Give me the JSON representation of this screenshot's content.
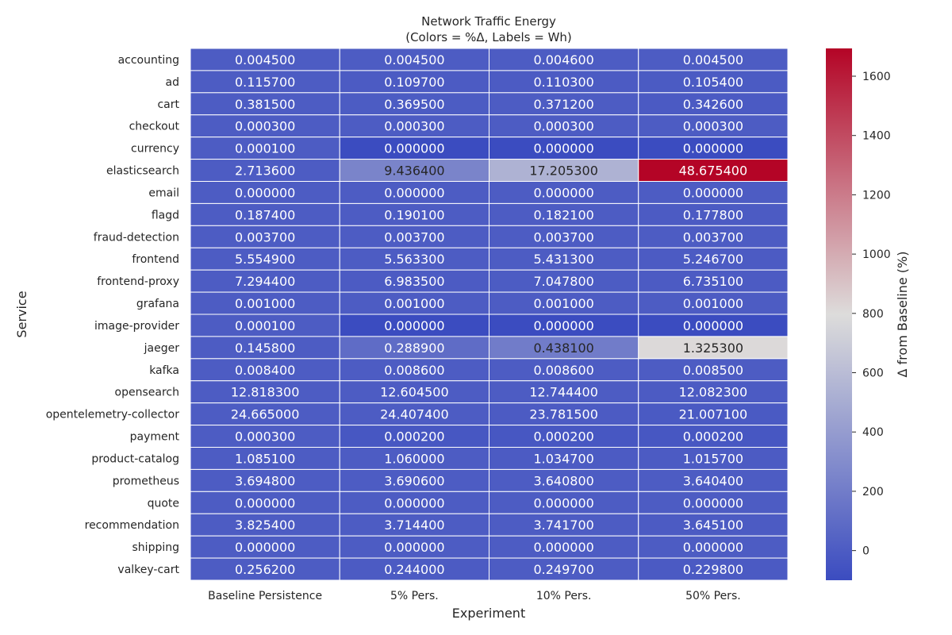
{
  "chart_data": {
    "type": "heatmap",
    "title_lines": [
      "Network Traffic Energy",
      "(Colors = %Δ, Labels = Wh)"
    ],
    "xlabel": "Experiment",
    "ylabel": "Service",
    "colorbar_label": "Δ from Baseline (%)",
    "colorbar_range": [
      -100,
      1693.7
    ],
    "colorbar_ticks": [
      0,
      200,
      400,
      600,
      800,
      1000,
      1200,
      1400,
      1600
    ],
    "colormap": [
      "#3b4cc0",
      "#dddcdb",
      "#b40426"
    ],
    "columns": [
      "Baseline Persistence",
      "5% Pers.",
      "10% Pers.",
      "50% Pers."
    ],
    "rows": [
      "accounting",
      "ad",
      "cart",
      "checkout",
      "currency",
      "elasticsearch",
      "email",
      "flagd",
      "fraud-detection",
      "frontend",
      "frontend-proxy",
      "grafana",
      "image-provider",
      "jaeger",
      "kafka",
      "opensearch",
      "opentelemetry-collector",
      "payment",
      "product-catalog",
      "prometheus",
      "quote",
      "recommendation",
      "shipping",
      "valkey-cart"
    ],
    "labels": [
      [
        "0.004500",
        "0.004500",
        "0.004600",
        "0.004500"
      ],
      [
        "0.115700",
        "0.109700",
        "0.110300",
        "0.105400"
      ],
      [
        "0.381500",
        "0.369500",
        "0.371200",
        "0.342600"
      ],
      [
        "0.000300",
        "0.000300",
        "0.000300",
        "0.000300"
      ],
      [
        "0.000100",
        "0.000000",
        "0.000000",
        "0.000000"
      ],
      [
        "2.713600",
        "9.436400",
        "17.205300",
        "48.675400"
      ],
      [
        "0.000000",
        "0.000000",
        "0.000000",
        "0.000000"
      ],
      [
        "0.187400",
        "0.190100",
        "0.182100",
        "0.177800"
      ],
      [
        "0.003700",
        "0.003700",
        "0.003700",
        "0.003700"
      ],
      [
        "5.554900",
        "5.563300",
        "5.431300",
        "5.246700"
      ],
      [
        "7.294400",
        "6.983500",
        "7.047800",
        "6.735100"
      ],
      [
        "0.001000",
        "0.001000",
        "0.001000",
        "0.001000"
      ],
      [
        "0.000100",
        "0.000000",
        "0.000000",
        "0.000000"
      ],
      [
        "0.145800",
        "0.288900",
        "0.438100",
        "1.325300"
      ],
      [
        "0.008400",
        "0.008600",
        "0.008600",
        "0.008500"
      ],
      [
        "12.818300",
        "12.604500",
        "12.744400",
        "12.082300"
      ],
      [
        "24.665000",
        "24.407400",
        "23.781500",
        "21.007100"
      ],
      [
        "0.000300",
        "0.000200",
        "0.000200",
        "0.000200"
      ],
      [
        "1.085100",
        "1.060000",
        "1.034700",
        "1.015700"
      ],
      [
        "3.694800",
        "3.690600",
        "3.640800",
        "3.640400"
      ],
      [
        "0.000000",
        "0.000000",
        "0.000000",
        "0.000000"
      ],
      [
        "3.825400",
        "3.714400",
        "3.741700",
        "3.645100"
      ],
      [
        "0.000000",
        "0.000000",
        "0.000000",
        "0.000000"
      ],
      [
        "0.256200",
        "0.244000",
        "0.249700",
        "0.229800"
      ]
    ]
  }
}
